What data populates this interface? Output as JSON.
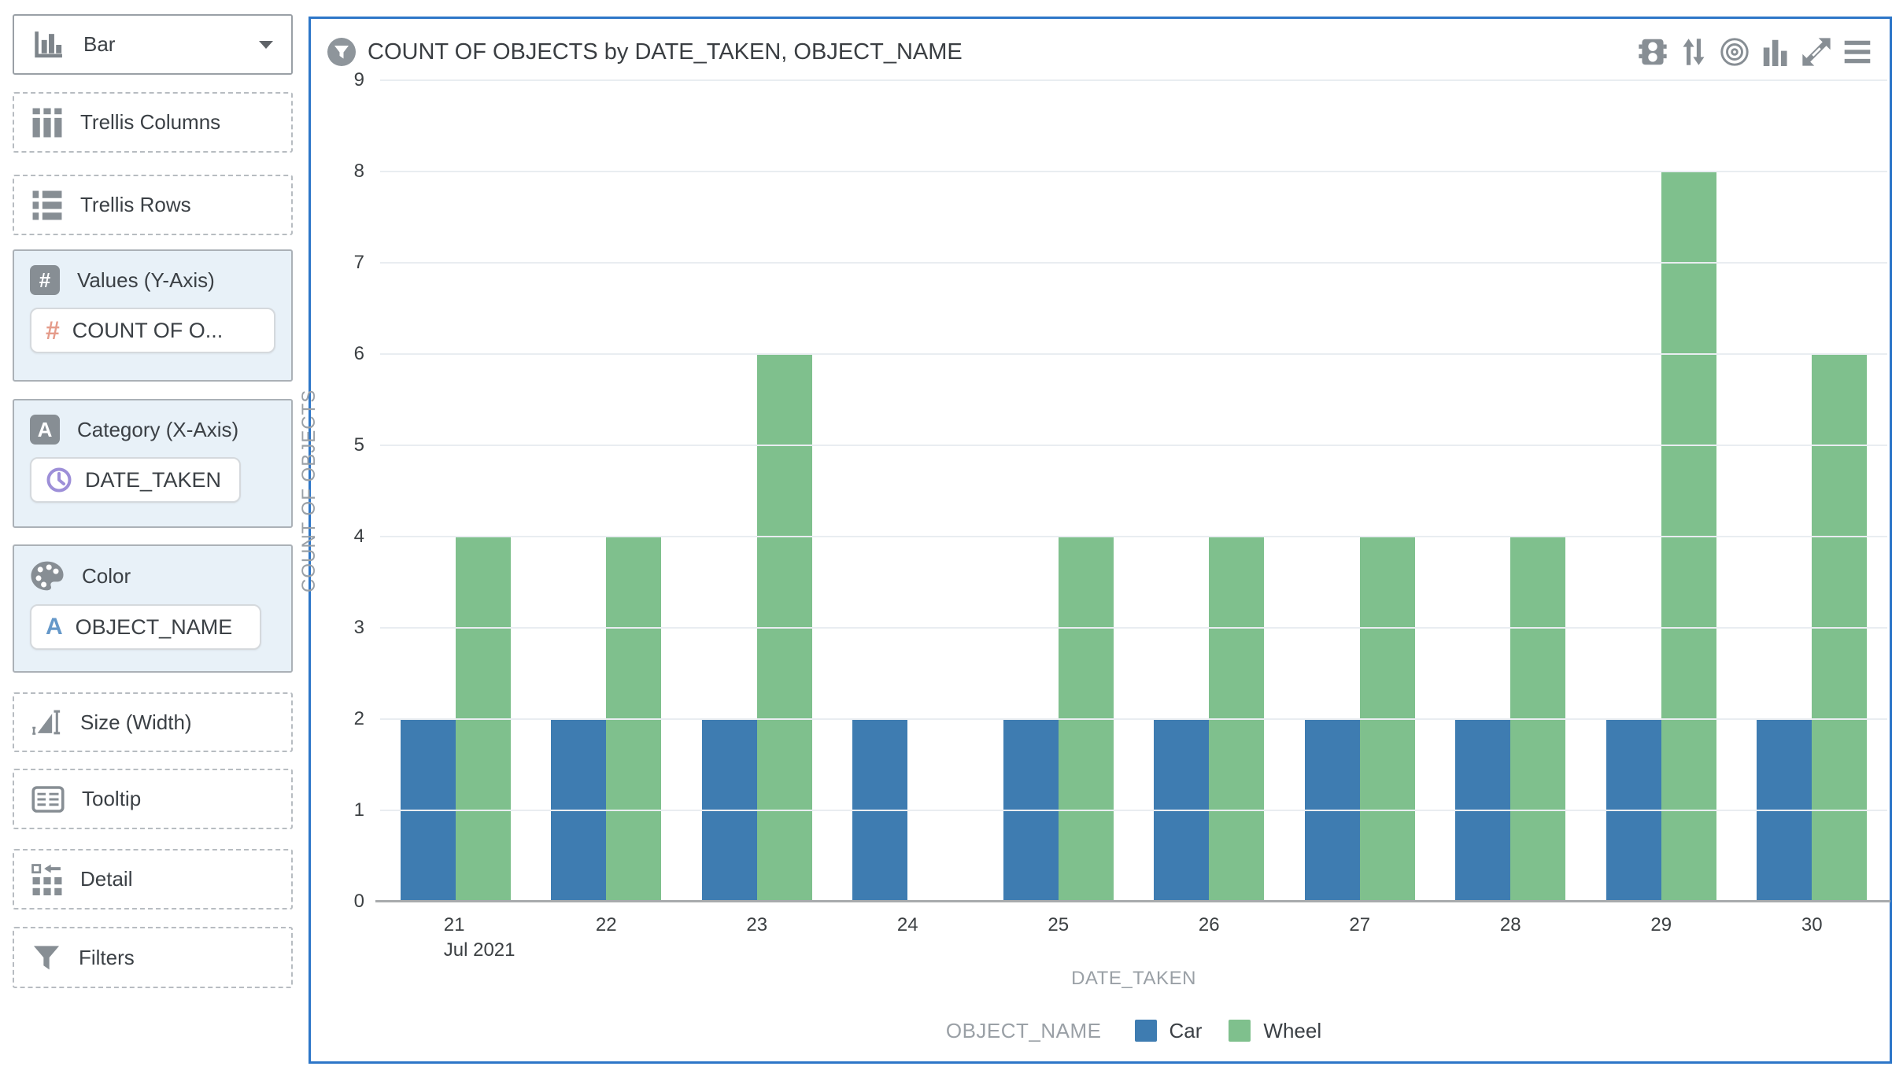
{
  "sidebar": {
    "chart_type": {
      "label": "Bar",
      "icon": "bar-chart-type-icon"
    },
    "zones": [
      {
        "label": "Trellis Columns",
        "icon": "trellis-columns-icon"
      },
      {
        "label": "Trellis Rows",
        "icon": "trellis-rows-icon"
      },
      {
        "label": "Values (Y-Axis)",
        "icon": "number-badge-icon",
        "field": {
          "name": "COUNT OF O...",
          "icon": "number-hash-icon",
          "accent": "#e59c8b"
        }
      },
      {
        "label": "Category (X-Axis)",
        "icon": "text-badge-icon",
        "field": {
          "name": "DATE_TAKEN",
          "icon": "clock-icon",
          "accent": "#9d8fd8"
        }
      },
      {
        "label": "Color",
        "icon": "palette-icon",
        "field": {
          "name": "OBJECT_NAME",
          "icon": "text-attribute-icon",
          "accent": "#6598c9"
        }
      },
      {
        "label": "Size (Width)",
        "icon": "size-icon"
      },
      {
        "label": "Tooltip",
        "icon": "tooltip-icon"
      },
      {
        "label": "Detail",
        "icon": "detail-icon"
      },
      {
        "label": "Filters",
        "icon": "filter-icon"
      }
    ]
  },
  "panel": {
    "toolbar_icons": [
      "traffic-light-icon",
      "sort-icon",
      "target-icon",
      "bar-chart-icon",
      "expand-icon",
      "menu-icon"
    ]
  },
  "chart_data": {
    "type": "bar",
    "title": "COUNT OF OBJECTS by DATE_TAKEN, OBJECT_NAME",
    "categories": [
      "21",
      "22",
      "23",
      "24",
      "25",
      "26",
      "27",
      "28",
      "29",
      "30"
    ],
    "x_sublabel": {
      "index": 0,
      "text": "Jul 2021"
    },
    "series": [
      {
        "name": "Car",
        "color": "#3e7cb1",
        "values": [
          2,
          2,
          2,
          2,
          2,
          2,
          2,
          2,
          2,
          2
        ]
      },
      {
        "name": "Wheel",
        "color": "#7fc08d",
        "values": [
          4,
          4,
          6,
          0,
          4,
          4,
          4,
          4,
          8,
          6
        ]
      }
    ],
    "xlabel": "DATE_TAKEN",
    "ylabel": "COUNT OF OBJECTS",
    "ylim": [
      0,
      9
    ],
    "yticks": [
      0,
      1,
      2,
      3,
      4,
      5,
      6,
      7,
      8,
      9
    ],
    "grid": true,
    "legend_title": "OBJECT_NAME",
    "legend_position": "bottom"
  }
}
